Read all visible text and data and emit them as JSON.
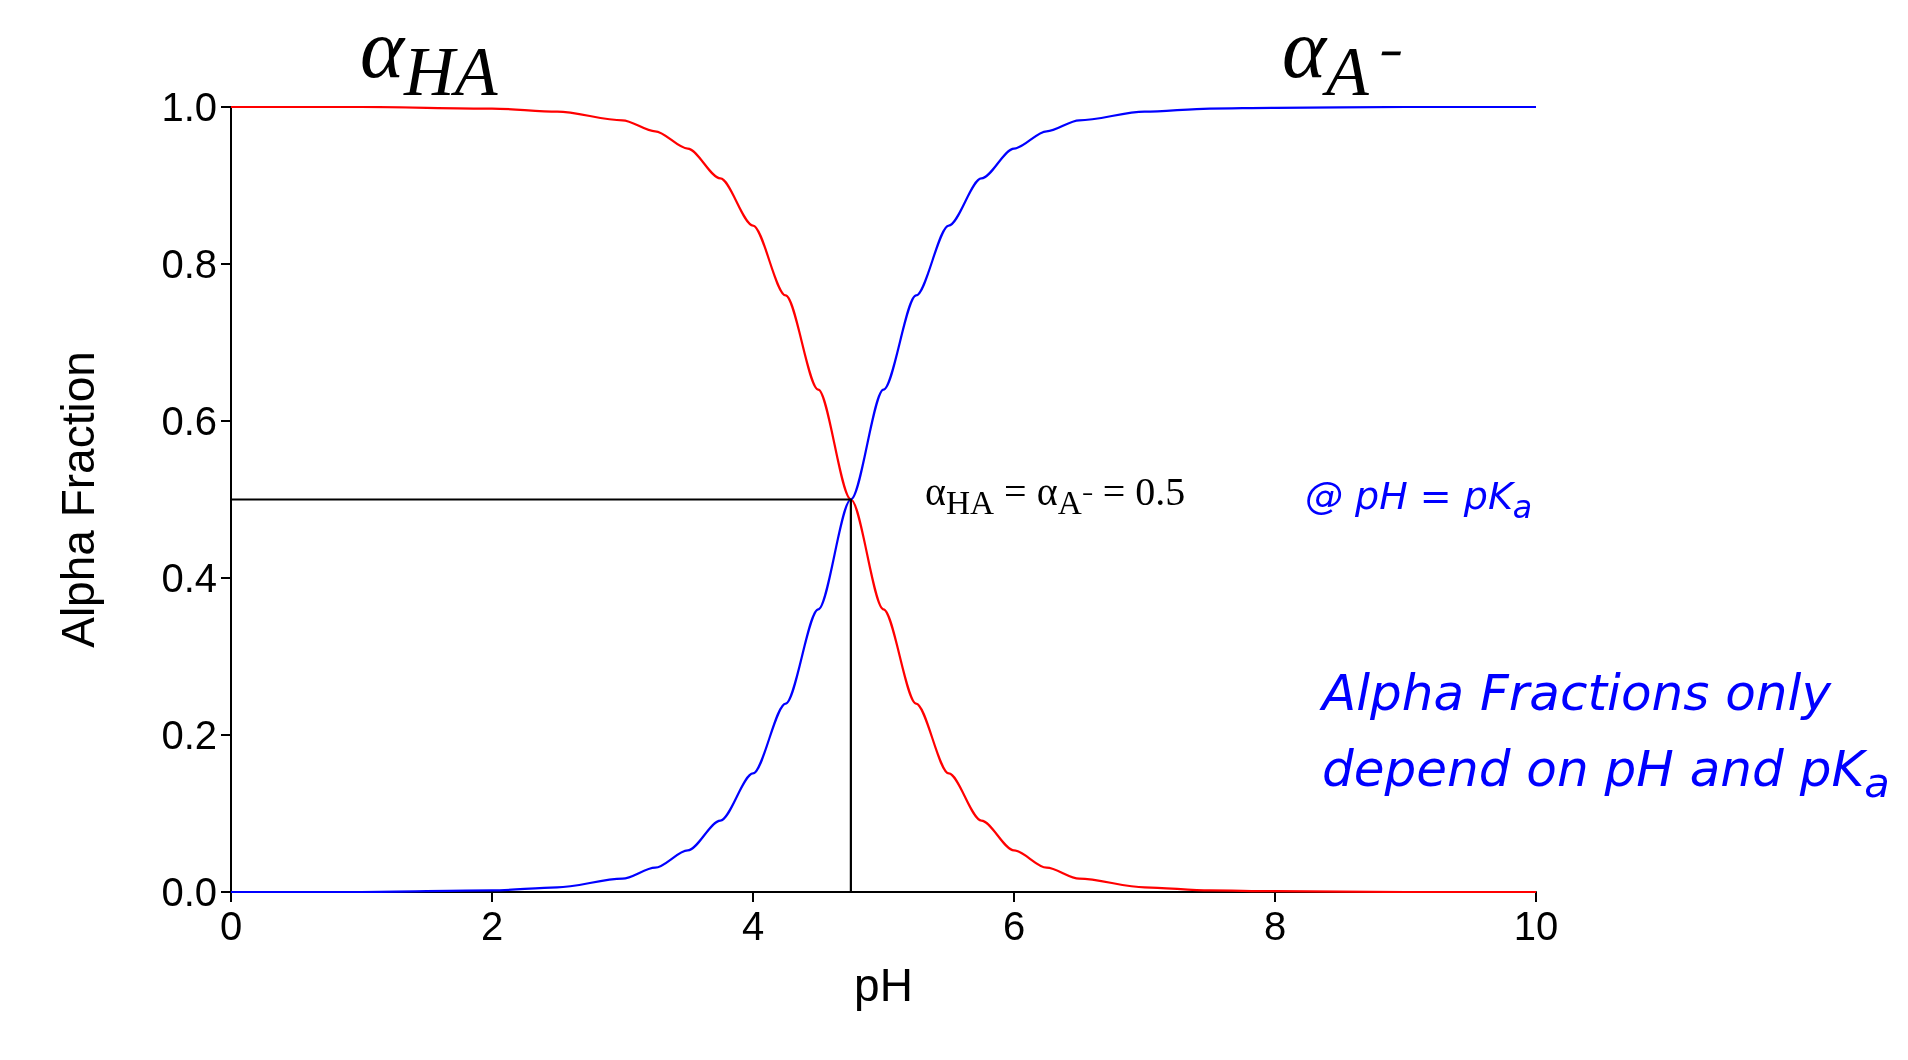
{
  "chart_data": {
    "type": "line",
    "xlabel": "pH",
    "ylabel": "Alpha Fraction",
    "xlim": [
      0,
      10
    ],
    "xticks": [
      0,
      2,
      4,
      6,
      8,
      10
    ],
    "ylim": [
      0,
      1
    ],
    "yticks": [
      {
        "value": 0,
        "label": "0.0"
      },
      0.2,
      0.4,
      0.6,
      0.8,
      {
        "value": 1,
        "label": "1.0"
      }
    ],
    "grid": false,
    "marker": "none",
    "line_style": "solid",
    "series": [
      {
        "color": "#ff0000",
        "x": [
          0,
          1,
          2,
          2.5,
          3,
          3.25,
          3.5,
          3.75,
          4,
          4.25,
          4.5,
          4.75,
          5,
          5.25,
          5.5,
          5.75,
          6,
          6.25,
          6.5,
          7,
          7.5,
          8,
          9,
          10
        ],
        "values": [
          1.0,
          1.0,
          0.998,
          0.994,
          0.983,
          0.969,
          0.947,
          0.909,
          0.849,
          0.76,
          0.64,
          0.5,
          0.36,
          0.24,
          0.151,
          0.091,
          0.053,
          0.031,
          0.017,
          0.006,
          0.002,
          0.001,
          0.0,
          0.0
        ]
      },
      {
        "color": "#0000ff",
        "x": [
          0,
          1,
          2,
          2.5,
          3,
          3.25,
          3.5,
          3.75,
          4,
          4.25,
          4.5,
          4.75,
          5,
          5.25,
          5.5,
          5.75,
          6,
          6.25,
          6.5,
          7,
          7.5,
          8,
          9,
          10
        ],
        "values": [
          0.0,
          0.0,
          0.002,
          0.006,
          0.017,
          0.031,
          0.053,
          0.091,
          0.151,
          0.24,
          0.36,
          0.5,
          0.64,
          0.76,
          0.849,
          0.909,
          0.947,
          0.969,
          0.983,
          0.994,
          0.998,
          0.999,
          1.0,
          1.0
        ]
      },
      {
        "color": "#000000",
        "x": [
          0,
          4.75,
          4.75
        ],
        "values": [
          0.5,
          0.5,
          0
        ]
      }
    ],
    "annotations": [
      "α$_{HA}$",
      "α$_{A⁻}$",
      "α$_{HA}$ = α$_{A⁻}$ = 0.5",
      "@ pH = pK$_{a}$",
      "Alpha Fractions only depend on pH and pK$_{a}$"
    ]
  }
}
